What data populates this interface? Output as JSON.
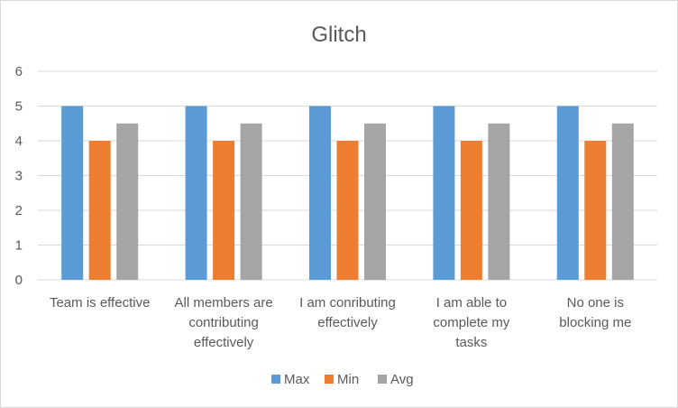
{
  "chart_data": {
    "type": "bar",
    "title": "Glitch",
    "categories": [
      [
        "Team is effective"
      ],
      [
        "All members are",
        "contributing",
        "effectively"
      ],
      [
        "I am conributing",
        "effectively"
      ],
      [
        "I am able to",
        "complete my",
        "tasks"
      ],
      [
        "No one is",
        "blocking me"
      ]
    ],
    "series": [
      {
        "name": "Max",
        "color": "#5b9bd5",
        "values": [
          5,
          5,
          5,
          5,
          5
        ]
      },
      {
        "name": "Min",
        "color": "#ed7d31",
        "values": [
          4,
          4,
          4,
          4,
          4
        ]
      },
      {
        "name": "Avg",
        "color": "#a5a5a5",
        "values": [
          4.5,
          4.5,
          4.5,
          4.5,
          4.5
        ]
      }
    ],
    "yticks": [
      "0",
      "1",
      "2",
      "3",
      "4",
      "5",
      "6"
    ],
    "ylim": [
      0,
      6
    ],
    "grid": true,
    "legend": "bottom"
  }
}
